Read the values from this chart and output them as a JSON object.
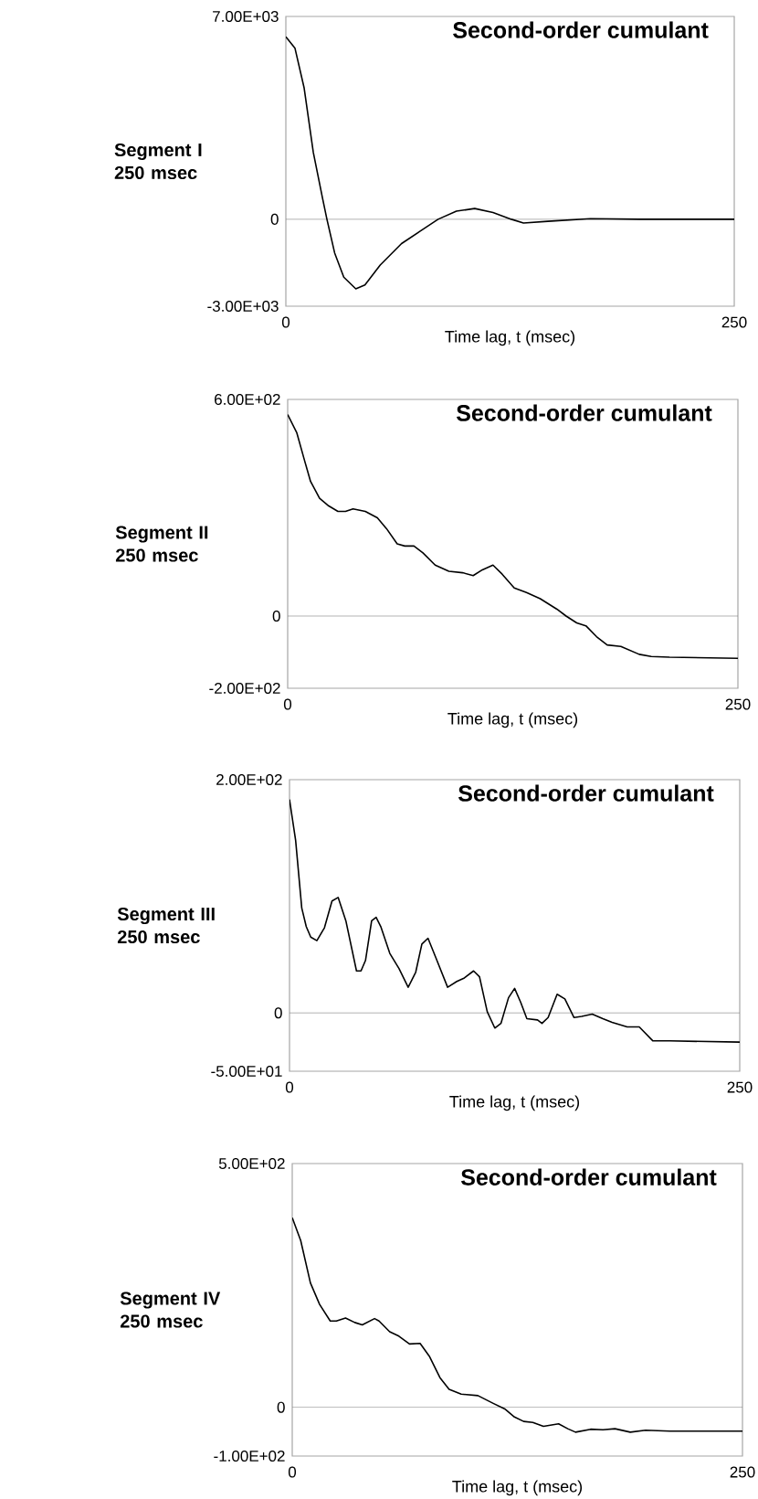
{
  "chart_data": [
    {
      "type": "line",
      "title": "Second-order cumulant",
      "xlabel": "Time lag, t (msec)",
      "ylabel": "Segment I 250 msec",
      "color": "#000000",
      "x": [
        0,
        5.1,
        10.2,
        15.3,
        20.4,
        22.9,
        27.2,
        32.3,
        39,
        44.1,
        52.6,
        64.5,
        74.7,
        84.9,
        95.1,
        105.3,
        115.5,
        125.7,
        132.5,
        146.1,
        169.8,
        197,
        250
      ],
      "values": [
        6300,
        5900,
        4530,
        2310,
        740,
        0,
        -1160,
        -2000,
        -2400,
        -2270,
        -1580,
        -840,
        -420,
        0,
        280,
        370,
        230,
        0,
        -130,
        -70,
        20,
        0,
        0
      ],
      "xlim": [
        0,
        250
      ],
      "ylim": [
        -3000,
        7000
      ],
      "xticks": [
        0,
        250
      ],
      "yticks": [
        {
          "value": -3000,
          "label": "-3.00E+03"
        },
        0,
        {
          "value": 7000,
          "label": "7.00E+03"
        }
      ],
      "ref_lines": [
        {
          "axis": "y",
          "value": 0,
          "color": "#808080"
        }
      ]
    },
    {
      "type": "line",
      "title": "Second-order cumulant",
      "xlabel": "Time lag, t (msec)",
      "ylabel": "Segment II 250 msec",
      "color": "#000000",
      "x": [
        0,
        5.1,
        9.3,
        12.7,
        17.7,
        22.8,
        27.9,
        32.1,
        36.3,
        43.1,
        49.8,
        54.9,
        60.8,
        65,
        70.1,
        75.1,
        81.9,
        89.5,
        97.1,
        103,
        108.1,
        114,
        119.1,
        125.8,
        132.6,
        140.2,
        149.5,
        154.6,
        160.5,
        165.6,
        171.5,
        177.4,
        185,
        195.2,
        201.9,
        212,
        250
      ],
      "values": [
        558,
        507,
        432,
        373,
        326,
        305,
        290,
        290,
        297,
        290,
        272,
        242,
        200,
        194,
        194,
        175,
        141,
        124,
        120,
        112,
        128,
        141,
        116,
        78,
        65,
        48,
        19,
        0,
        -19,
        -27,
        -57,
        -80,
        -84,
        -106,
        -112,
        -114,
        -117
      ],
      "xlim": [
        0,
        250
      ],
      "ylim": [
        -200,
        600
      ],
      "xticks": [
        0,
        250
      ],
      "yticks": [
        {
          "value": -200,
          "label": "-2.00E+02"
        },
        0,
        {
          "value": 600,
          "label": "6.00E+02"
        }
      ],
      "ref_lines": [
        {
          "axis": "y",
          "value": 0,
          "color": "#808080"
        }
      ]
    },
    {
      "type": "line",
      "title": "Second-order cumulant",
      "xlabel": "Time lag, t (msec)",
      "ylabel": "Segment III 250 msec",
      "color": "#000000",
      "x": [
        0,
        3.4,
        6.8,
        9.3,
        11.8,
        15.2,
        19.4,
        23.6,
        27,
        31.3,
        37.2,
        39.7,
        42.2,
        45.6,
        48.1,
        50.7,
        55.7,
        60.8,
        65.9,
        70.1,
        73.5,
        76.9,
        81.1,
        87.8,
        92.9,
        97.1,
        102.2,
        105.5,
        109.8,
        114,
        117.4,
        121.6,
        125,
        128.4,
        131.8,
        137.7,
        140.2,
        143.6,
        148.6,
        152.9,
        158,
        162.2,
        168.1,
        174,
        179.1,
        187.5,
        194.2,
        201.8,
        211.1,
        250
      ],
      "values": [
        183,
        148,
        90,
        74,
        65,
        62,
        73,
        96,
        99,
        79,
        36,
        36,
        45,
        79,
        82,
        74,
        51,
        38,
        22,
        35,
        59,
        64,
        48,
        22,
        27,
        30,
        36,
        31,
        1,
        -13,
        -9,
        13,
        21,
        9,
        -5,
        -6,
        -9,
        -4,
        16,
        12,
        -4,
        -3,
        -1,
        -5,
        -8,
        -12,
        -12,
        -24,
        -24,
        -25
      ],
      "xlim": [
        0,
        250
      ],
      "ylim": [
        -50,
        200
      ],
      "xticks": [
        0,
        250
      ],
      "yticks": [
        {
          "value": -50,
          "label": "-5.00E+01"
        },
        0,
        {
          "value": 200,
          "label": "2.00E+02"
        }
      ],
      "ref_lines": [
        {
          "axis": "y",
          "value": 0,
          "color": "#808080"
        }
      ]
    },
    {
      "type": "line",
      "title": "Second-order cumulant",
      "xlabel": "Time lag, t (msec)",
      "ylabel": "Segment IV 250 msec",
      "color": "#000000",
      "x": [
        0,
        4.7,
        10.1,
        15.2,
        21.1,
        24.5,
        29.6,
        34.7,
        38.9,
        45.7,
        48.2,
        54.1,
        59.2,
        65.1,
        71,
        76.1,
        82,
        87.1,
        93.8,
        103.1,
        111.6,
        118.3,
        123.4,
        128.5,
        133.6,
        139.5,
        147.9,
        153,
        157.3,
        165.7,
        172.5,
        179.2,
        187.7,
        196.2,
        209.7,
        250
      ],
      "values": [
        389,
        342,
        255,
        211,
        177,
        177,
        183,
        174,
        169,
        182,
        177,
        155,
        146,
        130,
        131,
        105,
        61,
        37,
        27,
        24,
        8,
        -4,
        -20,
        -29,
        -31,
        -39,
        -34,
        -44,
        -51,
        -45,
        -46,
        -44,
        -51,
        -47,
        -49,
        -49
      ],
      "xlim": [
        0,
        250
      ],
      "ylim": [
        -100,
        500
      ],
      "xticks": [
        0,
        250
      ],
      "yticks": [
        {
          "value": -100,
          "label": "-1.00E+02"
        },
        0,
        {
          "value": 500,
          "label": "5.00E+02"
        }
      ],
      "ref_lines": [
        {
          "axis": "y",
          "value": 0,
          "color": "#808080"
        }
      ]
    }
  ]
}
